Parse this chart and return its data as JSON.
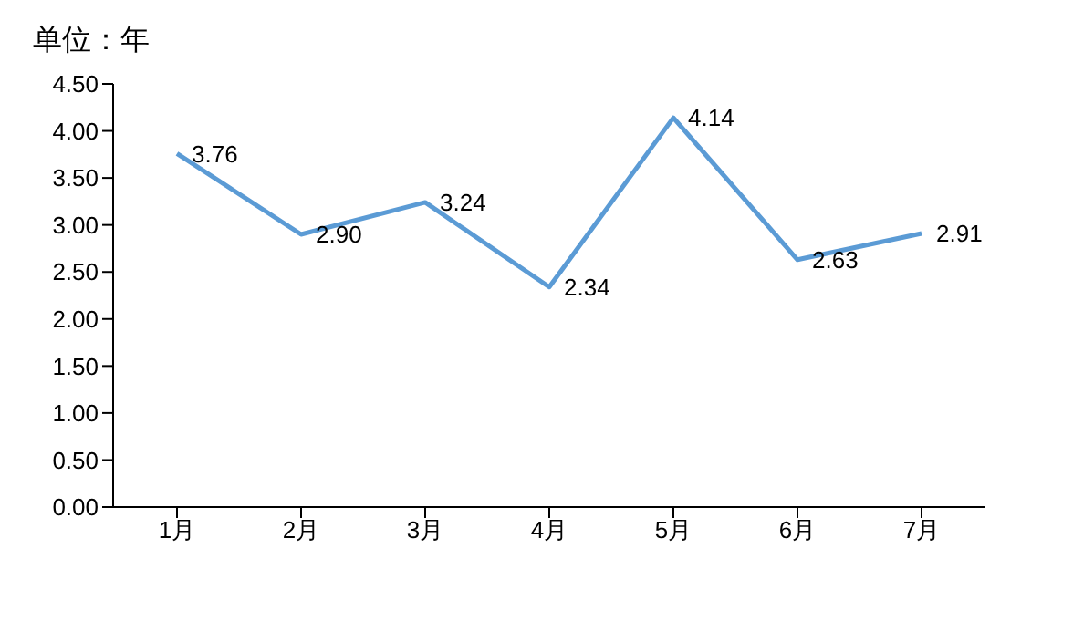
{
  "chart_data": {
    "type": "line",
    "ylabel": "单位：年",
    "categories": [
      "1月",
      "2月",
      "3月",
      "4月",
      "5月",
      "6月",
      "7月"
    ],
    "series": [
      {
        "color": "#5b9bd5",
        "values": [
          3.76,
          2.9,
          3.24,
          2.34,
          4.14,
          2.63,
          2.91
        ]
      }
    ],
    "ylim": [
      0,
      4.5
    ],
    "yticks": [
      {
        "value": 0,
        "label": "0.00"
      },
      {
        "value": 0.5,
        "label": "0.50"
      },
      {
        "value": 1,
        "label": "1.00"
      },
      {
        "value": 1.5,
        "label": "1.50"
      },
      {
        "value": 2,
        "label": "2.00"
      },
      {
        "value": 2.5,
        "label": "2.50"
      },
      {
        "value": 3,
        "label": "3.00"
      },
      {
        "value": 3.5,
        "label": "3.50"
      },
      {
        "value": 4,
        "label": "4.00"
      },
      {
        "value": 4.5,
        "label": "4.50"
      }
    ],
    "value_labels": [
      "3.76",
      "2.90",
      "3.24",
      "2.34",
      "4.14",
      "2.63",
      "2.91"
    ],
    "grid": false,
    "legend": false,
    "marker": "none",
    "line_style": "solid"
  }
}
